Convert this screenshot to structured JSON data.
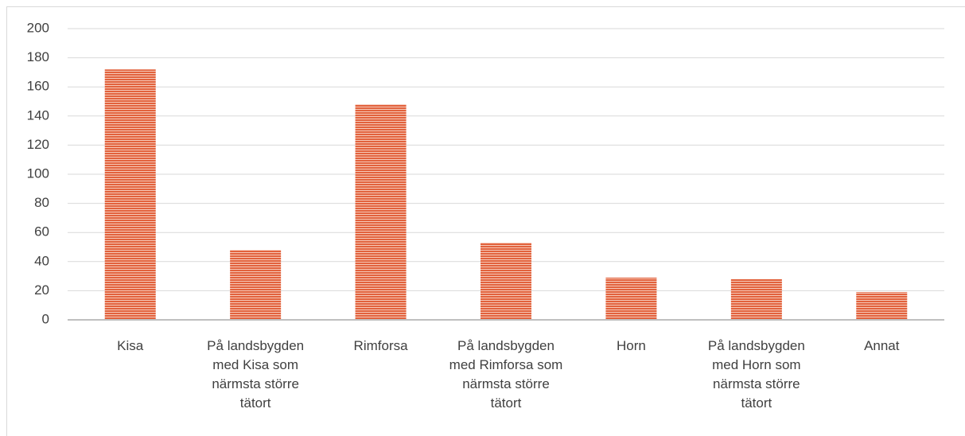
{
  "chart_data": {
    "type": "bar",
    "categories": [
      "Kisa",
      "På landsbygden med Kisa som närmsta större tätort",
      "Rimforsa",
      "På landsbygden med Rimforsa som närmsta större tätort",
      "Horn",
      "På landsbygden med Horn som närmsta större tätort",
      "Annat"
    ],
    "values": [
      172,
      48,
      148,
      53,
      29,
      28,
      19
    ],
    "color": "#e2623d",
    "ylim": [
      0,
      200
    ],
    "yticks": [
      0,
      20,
      40,
      60,
      80,
      100,
      120,
      140,
      160,
      180,
      200
    ],
    "grid": true
  }
}
